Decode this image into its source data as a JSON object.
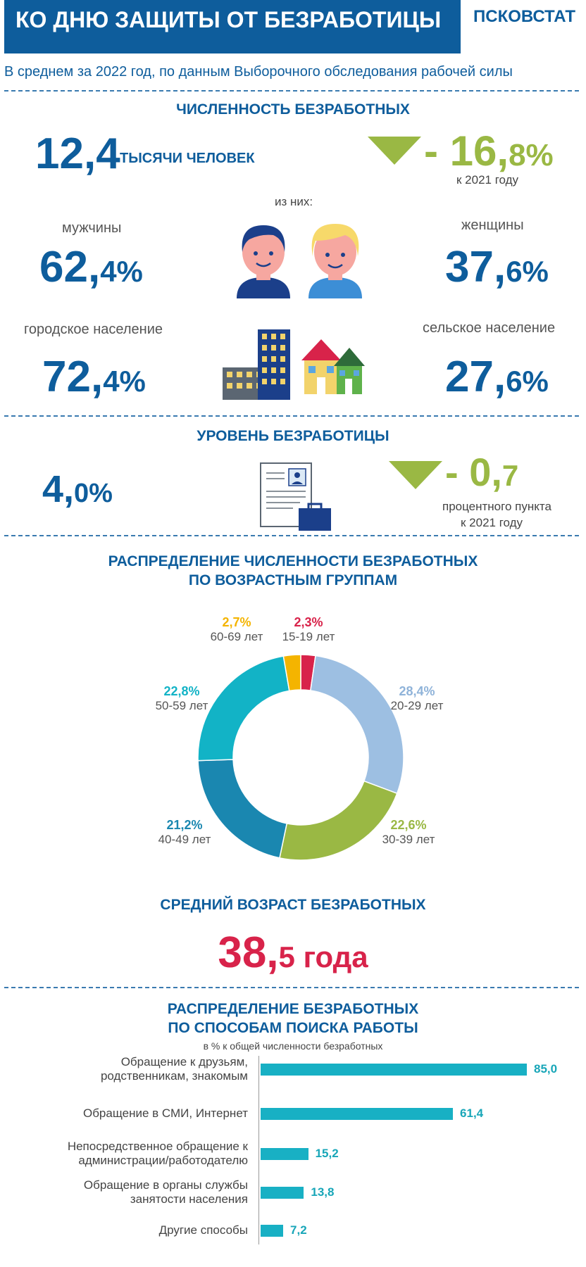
{
  "header": {
    "title": "КО ДНЮ ЗАЩИТЫ ОТ БЕЗРАБОТИЦЫ",
    "brand": "ПСКОВСТАТ"
  },
  "subtitle": "В среднем за 2022 год, по данным Выборочного обследования рабочей силы",
  "unemployed": {
    "title": "ЧИСЛЕННОСТЬ БЕЗРАБОТНЫХ",
    "value_int": "12,4",
    "value_unit": "ТЫСЯЧИ ЧЕЛОВЕК",
    "change_int": "- 16,",
    "change_dec": "8%",
    "change_note": "к  2021 году",
    "of_them": "из них:",
    "men_label": "мужчины",
    "men_int": "62,",
    "men_dec": "4%",
    "women_label": "женщины",
    "women_int": "37,",
    "women_dec": "6%",
    "urban_label": "городское население",
    "urban_int": "72,",
    "urban_dec": "4%",
    "rural_label": "сельское население",
    "rural_int": "27,",
    "rural_dec": "6%"
  },
  "rate": {
    "title": "УРОВЕНЬ БЕЗРАБОТИЦЫ",
    "value_int": "4,",
    "value_dec": "0%",
    "change_int": "- 0,",
    "change_dec": "7",
    "change_note1": "процентного пункта",
    "change_note2": "к  2021 году"
  },
  "age": {
    "title_line1": "РАСПРЕДЕЛЕНИЕ ЧИСЛЕННОСТИ БЕЗРАБОТНЫХ",
    "title_line2": "ПО ВОЗРАСТНЫМ ГРУППАМ"
  },
  "chart_data": [
    {
      "type": "pie",
      "categories": [
        "15-19  лет",
        "20-29  лет",
        "30-39 лет",
        "40-49 лет",
        "50-59 лет",
        "60-69  лет"
      ],
      "values": [
        2.3,
        28.4,
        22.6,
        21.2,
        22.8,
        2.7
      ],
      "value_labels": [
        "2,3%",
        "28,4%",
        "22,6%",
        "21,2%",
        "22,8%",
        "2,7%"
      ],
      "colors": [
        "#d8234a",
        "#9dbfe2",
        "#9ab844",
        "#1a87b0",
        "#12b3c6",
        "#f4b400"
      ],
      "title": "",
      "donut": true
    },
    {
      "type": "bar",
      "orientation": "horizontal",
      "title_line1": "РАСПРЕДЕЛЕНИЕ БЕЗРАБОТНЫХ",
      "title_line2": "ПО СПОСОБАМ ПОИСКА РАБОТЫ",
      "subtitle": "в % к общей численности безработных",
      "categories": [
        [
          "Обращение к друзьям,",
          "родственникам, знакомым"
        ],
        [
          "Обращение в СМИ, Интернет"
        ],
        [
          "Непосредственное обращение к",
          "администрации/работодателю"
        ],
        [
          "Обращение в органы службы",
          "занятости населения"
        ],
        [
          "Другие способы"
        ]
      ],
      "values": [
        85.0,
        61.4,
        15.2,
        13.8,
        7.2
      ],
      "value_labels": [
        "85,0",
        "61,4",
        "15,2",
        "13,8",
        "7,2"
      ],
      "color": "#18b0c4"
    }
  ],
  "avg_age": {
    "title": "СРЕДНИЙ ВОЗРАСТ БЕЗРАБОТНЫХ",
    "value_int": "38,",
    "value_rest": "5 года"
  }
}
